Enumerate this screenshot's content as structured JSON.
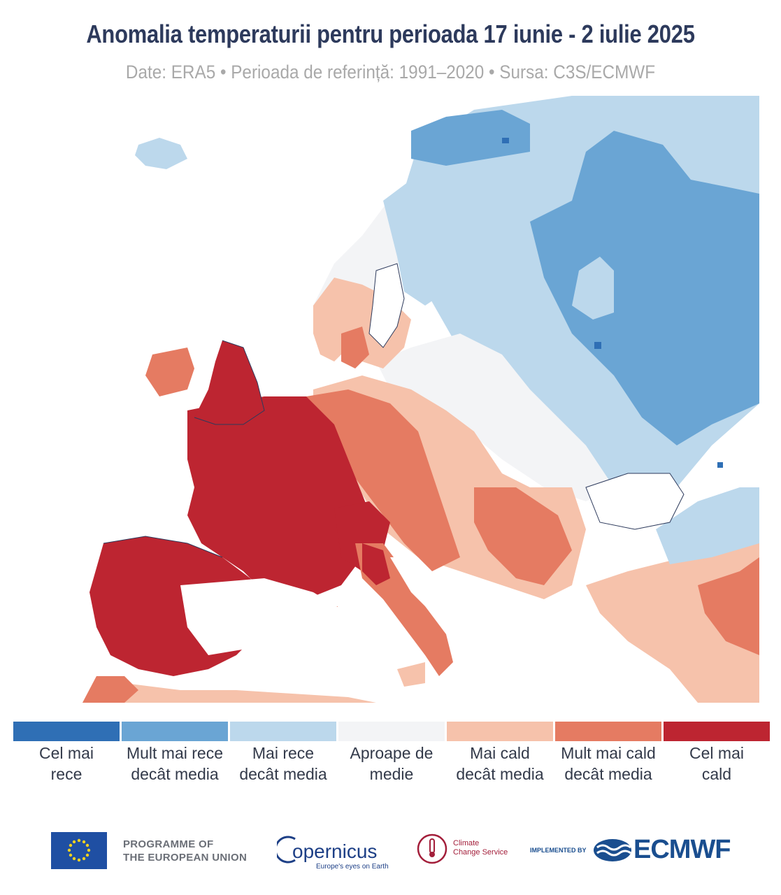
{
  "header": {
    "title": "Anomalia temperaturii pentru perioada 17 iunie - 2 iulie 2025",
    "subtitle": "Date: ERA5 • Perioada de referință: 1991–2020 • Sursa: C3S/ECMWF"
  },
  "legend": {
    "items": [
      {
        "line1": "Cel mai",
        "line2": "rece",
        "color": "#2f6fb5"
      },
      {
        "line1": "Mult mai rece",
        "line2": "decât media",
        "color": "#6aa5d4"
      },
      {
        "line1": "Mai rece",
        "line2": "decât media",
        "color": "#bcd8ec"
      },
      {
        "line1": "Aproape de",
        "line2": "medie",
        "color": "#f3f4f6"
      },
      {
        "line1": "Mai cald",
        "line2": "decât media",
        "color": "#f6c2ab"
      },
      {
        "line1": "Mult mai cald",
        "line2": "decât media",
        "color": "#e57b62"
      },
      {
        "line1": "Cel mai",
        "line2": "cald",
        "color": "#bd2531"
      }
    ]
  },
  "map": {
    "colors": {
      "coldest": "#2f6fb5",
      "much_colder": "#6aa5d4",
      "colder": "#bcd8ec",
      "near": "#f3f4f6",
      "warmer": "#f6c2ab",
      "much_warmer": "#e57b62",
      "warmest": "#bd2531",
      "sea": "#ffffff",
      "coast": "#2d3a5c"
    }
  },
  "footer": {
    "eu_line1": "PROGRAMME OF",
    "eu_line2": "THE EUROPEAN UNION",
    "copernicus": "opernicus",
    "copernicus_tagline": "Europe's eyes on Earth",
    "c3s_line1": "Climate",
    "c3s_line2": "Change Service",
    "implemented_by": "IMPLEMENTED BY",
    "ecmwf": "ECMWF"
  }
}
